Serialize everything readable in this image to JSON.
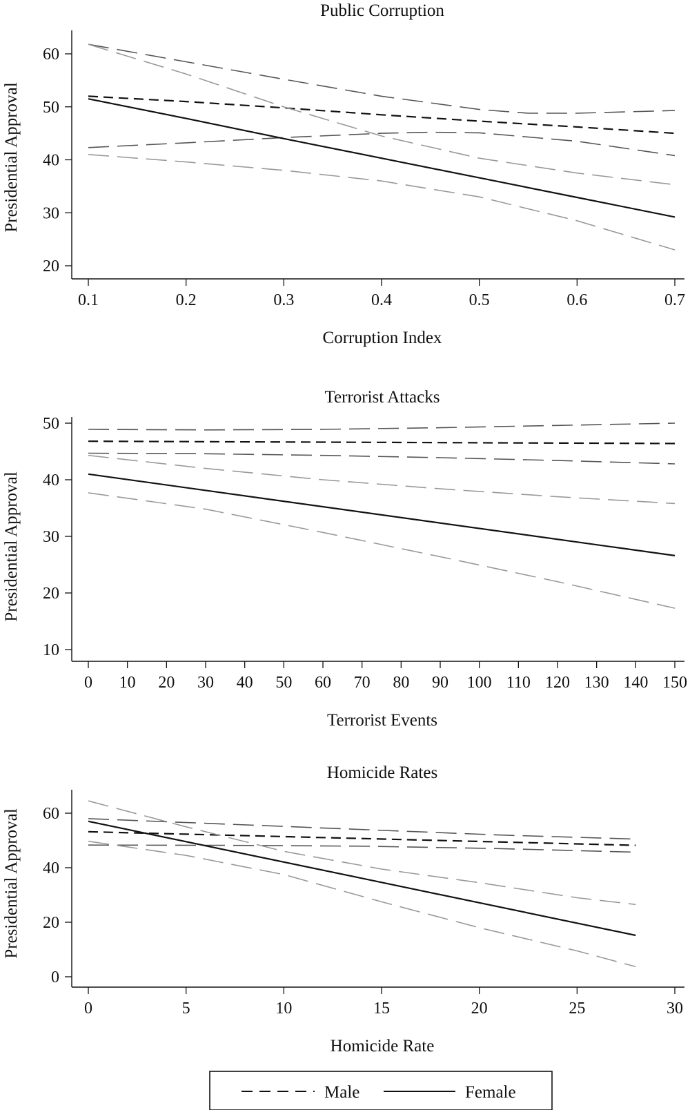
{
  "chart_data": [
    {
      "type": "line",
      "title": "Public Corruption",
      "xlabel": "Corruption Index",
      "ylabel": "Presidential Approval",
      "xlim": [
        0.1,
        0.7
      ],
      "ylim": [
        20,
        60
      ],
      "xticks": [
        "0.1",
        "0.2",
        "0.3",
        "0.4",
        "0.5",
        "0.6",
        "0.7"
      ],
      "yticks": [
        "20",
        "30",
        "40",
        "50",
        "60"
      ],
      "grid": false,
      "series": [
        {
          "name": "Male",
          "role": "estimate",
          "color": "#111111",
          "x": [
            0.1,
            0.2,
            0.3,
            0.4,
            0.5,
            0.6,
            0.7
          ],
          "y": [
            52.0,
            51.0,
            49.8,
            48.5,
            47.3,
            46.2,
            45.0
          ]
        },
        {
          "role": "ci-upper",
          "group": "Male",
          "color": "#555555",
          "x": [
            0.1,
            0.2,
            0.3,
            0.4,
            0.5,
            0.55,
            0.6,
            0.7
          ],
          "y": [
            61.8,
            58.5,
            55.2,
            52.0,
            49.5,
            48.8,
            48.8,
            49.3
          ]
        },
        {
          "role": "ci-lower",
          "group": "Male",
          "color": "#555555",
          "x": [
            0.1,
            0.2,
            0.3,
            0.4,
            0.45,
            0.5,
            0.6,
            0.7
          ],
          "y": [
            42.3,
            43.2,
            44.2,
            45.0,
            45.2,
            45.1,
            43.5,
            40.8
          ]
        },
        {
          "name": "Female",
          "role": "estimate",
          "color": "#111111",
          "x": [
            0.1,
            0.2,
            0.3,
            0.4,
            0.5,
            0.6,
            0.7
          ],
          "y": [
            51.5,
            47.8,
            44.0,
            40.3,
            36.6,
            32.9,
            29.2
          ]
        },
        {
          "role": "ci-upper",
          "group": "Female",
          "color": "#999999",
          "x": [
            0.1,
            0.2,
            0.3,
            0.4,
            0.5,
            0.6,
            0.7
          ],
          "y": [
            61.8,
            56.2,
            50.0,
            44.5,
            40.3,
            37.5,
            35.3
          ]
        },
        {
          "role": "ci-lower",
          "group": "Female",
          "color": "#999999",
          "x": [
            0.1,
            0.2,
            0.3,
            0.4,
            0.5,
            0.6,
            0.7
          ],
          "y": [
            41.0,
            39.6,
            38.0,
            36.0,
            33.0,
            28.5,
            23.0
          ]
        }
      ]
    },
    {
      "type": "line",
      "title": "Terrorist Attacks",
      "xlabel": "Terrorist Events",
      "ylabel": "Presidential Approval",
      "xlim": [
        0,
        150
      ],
      "ylim": [
        10,
        50
      ],
      "xticks": [
        "0",
        "10",
        "20",
        "30",
        "40",
        "50",
        "60",
        "70",
        "80",
        "90",
        "100",
        "110",
        "120",
        "130",
        "140",
        "150"
      ],
      "yticks": [
        "10",
        "20",
        "30",
        "40",
        "50"
      ],
      "grid": false,
      "series": [
        {
          "name": "Male",
          "role": "estimate",
          "color": "#111111",
          "x": [
            0,
            150
          ],
          "y": [
            46.8,
            46.4
          ]
        },
        {
          "role": "ci-upper",
          "group": "Male",
          "color": "#555555",
          "x": [
            0,
            30,
            60,
            90,
            120,
            150
          ],
          "y": [
            48.9,
            48.8,
            48.9,
            49.2,
            49.6,
            50.0
          ]
        },
        {
          "role": "ci-lower",
          "group": "Male",
          "color": "#555555",
          "x": [
            0,
            30,
            60,
            90,
            120,
            150
          ],
          "y": [
            44.7,
            44.6,
            44.3,
            43.9,
            43.4,
            42.8
          ]
        },
        {
          "name": "Female",
          "role": "estimate",
          "color": "#111111",
          "x": [
            0,
            150
          ],
          "y": [
            41.0,
            26.6
          ]
        },
        {
          "role": "ci-upper",
          "group": "Female",
          "color": "#999999",
          "x": [
            0,
            30,
            60,
            90,
            120,
            150
          ],
          "y": [
            44.3,
            42.0,
            40.0,
            38.4,
            37.0,
            35.8
          ]
        },
        {
          "role": "ci-lower",
          "group": "Female",
          "color": "#999999",
          "x": [
            0,
            30,
            60,
            90,
            120,
            150
          ],
          "y": [
            37.7,
            34.8,
            30.7,
            26.4,
            22.0,
            17.3
          ]
        }
      ]
    },
    {
      "type": "line",
      "title": "Homicide Rates",
      "xlabel": "Homicide Rate",
      "ylabel": "Presidential Approval",
      "xlim": [
        0,
        30
      ],
      "ylim": [
        0,
        60
      ],
      "xticks": [
        "0",
        "5",
        "10",
        "15",
        "20",
        "25",
        "30"
      ],
      "yticks": [
        "0",
        "20",
        "40",
        "60"
      ],
      "grid": false,
      "series": [
        {
          "name": "Male",
          "role": "estimate",
          "color": "#111111",
          "x": [
            0,
            28
          ],
          "y": [
            53.2,
            48.2
          ]
        },
        {
          "role": "ci-upper",
          "group": "Male",
          "color": "#555555",
          "x": [
            0,
            7,
            14,
            21,
            28
          ],
          "y": [
            58.0,
            56.0,
            54.0,
            52.0,
            50.5
          ]
        },
        {
          "role": "ci-lower",
          "group": "Male",
          "color": "#555555",
          "x": [
            0,
            7,
            14,
            21,
            28
          ],
          "y": [
            48.3,
            48.2,
            47.9,
            47.0,
            45.7
          ]
        },
        {
          "name": "Female",
          "role": "estimate",
          "color": "#111111",
          "x": [
            0,
            28
          ],
          "y": [
            57.0,
            15.2
          ]
        },
        {
          "role": "ci-upper",
          "group": "Female",
          "color": "#999999",
          "x": [
            0,
            5,
            10,
            15,
            20,
            25,
            28
          ],
          "y": [
            64.5,
            55.0,
            46.0,
            39.5,
            34.5,
            29.0,
            26.5
          ]
        },
        {
          "role": "ci-lower",
          "group": "Female",
          "color": "#999999",
          "x": [
            0,
            5,
            10,
            15,
            20,
            25,
            28
          ],
          "y": [
            49.7,
            44.5,
            37.5,
            27.5,
            18.0,
            9.5,
            3.7
          ]
        }
      ]
    }
  ],
  "legend": {
    "placement": "bottom",
    "items": [
      {
        "label": "Male",
        "style": "dashed"
      },
      {
        "label": "Female",
        "style": "solid"
      }
    ]
  }
}
